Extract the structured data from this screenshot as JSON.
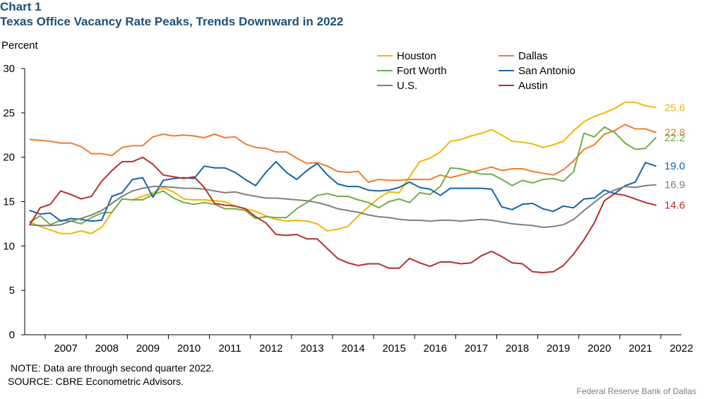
{
  "header": {
    "chart_label": "Chart 1",
    "title": "Texas Office Vacancy Rate Peaks, Trends Downward in 2022"
  },
  "footer": {
    "note": "NOTE:  Data are through second quarter 2022.",
    "source": "SOURCE: CBRE Econometric Advisors.",
    "credit": "Federal  Reserve  Bank  of  Dallas"
  },
  "chart_data": {
    "type": "line",
    "title": "Texas Office Vacancy Rate Peaks, Trends Downward in 2022",
    "ylabel": "Percent",
    "xlabel": "",
    "ylim": [
      0,
      30
    ],
    "yticks": [
      0,
      5,
      10,
      15,
      20,
      25,
      30
    ],
    "x_start": 2006.5,
    "x_end": 2022.5,
    "xtick_labels": [
      "2007",
      "2008",
      "2009",
      "2010",
      "2011",
      "2012",
      "2013",
      "2014",
      "2015",
      "2016",
      "2017",
      "2018",
      "2019",
      "2020",
      "2021",
      "2022"
    ],
    "legend_placement": "top-center",
    "grid": false,
    "quarters_start": "2006Q3",
    "series": [
      {
        "name": "Houston",
        "color": "#f2b705",
        "values": [
          12.7,
          12.2,
          11.8,
          11.4,
          11.4,
          11.7,
          11.4,
          12.1,
          13.8,
          15.3,
          15.2,
          15.6,
          16.0,
          16.6,
          16.1,
          15.3,
          15.2,
          15.2,
          15.1,
          15.0,
          14.5,
          14.2,
          13.9,
          13.4,
          13.0,
          12.8,
          12.9,
          12.8,
          12.5,
          11.7,
          11.9,
          12.2,
          13.4,
          14.4,
          15.4,
          16.1,
          16.0,
          17.8,
          19.5,
          19.9,
          20.6,
          21.8,
          22.0,
          22.4,
          22.7,
          23.1,
          22.5,
          21.8,
          21.7,
          21.5,
          21.1,
          21.4,
          21.8,
          23.0,
          24.0,
          24.6,
          25.0,
          25.5,
          26.2,
          26.2,
          25.8,
          25.6
        ]
      },
      {
        "name": "Dallas",
        "color": "#ed7d31",
        "values": [
          22.0,
          21.9,
          21.8,
          21.6,
          21.6,
          21.2,
          20.4,
          20.4,
          20.2,
          21.1,
          21.3,
          21.3,
          22.3,
          22.6,
          22.4,
          22.5,
          22.4,
          22.2,
          22.6,
          22.2,
          22.3,
          21.5,
          21.1,
          21.0,
          20.6,
          20.6,
          19.9,
          19.3,
          19.4,
          19.0,
          18.4,
          18.3,
          18.4,
          17.2,
          17.5,
          17.4,
          17.4,
          17.5,
          17.5,
          17.5,
          18.0,
          17.7,
          18.0,
          18.3,
          18.6,
          18.9,
          18.5,
          18.7,
          18.7,
          18.4,
          18.2,
          18.0,
          18.6,
          19.6,
          20.9,
          21.4,
          22.6,
          23.0,
          23.7,
          23.2,
          23.2,
          22.8
        ]
      },
      {
        "name": "Fort Worth",
        "color": "#70ad47",
        "values": [
          12.7,
          13.4,
          12.4,
          12.9,
          12.8,
          12.5,
          13.2,
          13.7,
          13.8,
          15.3,
          15.2,
          15.2,
          15.8,
          16.2,
          15.4,
          14.9,
          14.7,
          14.9,
          14.7,
          14.2,
          14.2,
          14.0,
          13.1,
          13.3,
          13.2,
          13.2,
          14.2,
          14.9,
          15.7,
          15.9,
          15.6,
          15.6,
          15.2,
          14.9,
          14.3,
          15.0,
          15.3,
          14.9,
          16.0,
          15.8,
          16.7,
          18.8,
          18.7,
          18.4,
          18.1,
          18.1,
          17.5,
          16.8,
          17.4,
          17.1,
          17.5,
          17.6,
          17.3,
          18.4,
          22.7,
          22.3,
          23.4,
          22.8,
          21.6,
          20.9,
          21.0,
          22.2
        ]
      },
      {
        "name": "San Antonio",
        "color": "#1565a8",
        "values": [
          14.0,
          13.6,
          13.7,
          12.8,
          13.1,
          13.0,
          12.8,
          12.9,
          15.6,
          16.0,
          17.5,
          17.7,
          15.5,
          17.4,
          17.6,
          17.7,
          17.6,
          19.0,
          18.8,
          18.8,
          18.3,
          17.5,
          16.8,
          18.3,
          19.5,
          18.3,
          17.5,
          18.5,
          19.3,
          18.0,
          17.0,
          16.7,
          16.7,
          16.3,
          16.2,
          16.3,
          16.6,
          17.2,
          16.6,
          16.4,
          15.7,
          16.5,
          16.5,
          16.5,
          16.5,
          16.4,
          14.4,
          14.1,
          14.7,
          14.8,
          14.2,
          13.9,
          14.5,
          14.3,
          15.3,
          15.4,
          16.3,
          15.9,
          16.8,
          17.2,
          19.4,
          19.0
        ]
      },
      {
        "name": "U.S.",
        "color": "#7f7f7f",
        "values": [
          12.4,
          12.3,
          12.3,
          12.4,
          12.8,
          13.1,
          13.5,
          14.0,
          14.8,
          15.6,
          16.2,
          16.5,
          16.7,
          16.7,
          16.6,
          16.5,
          16.5,
          16.4,
          16.2,
          16.0,
          16.1,
          15.8,
          15.6,
          15.4,
          15.4,
          15.3,
          15.2,
          15.1,
          14.9,
          14.6,
          14.2,
          14.0,
          13.8,
          13.5,
          13.3,
          13.2,
          13.0,
          12.9,
          12.9,
          12.8,
          12.9,
          12.9,
          12.8,
          12.9,
          13.0,
          12.9,
          12.7,
          12.5,
          12.4,
          12.3,
          12.1,
          12.2,
          12.4,
          13.0,
          14.0,
          14.9,
          15.8,
          16.3,
          16.7,
          16.6,
          16.8,
          16.9
        ]
      },
      {
        "name": "Austin",
        "color": "#b5302e",
        "values": [
          12.4,
          14.3,
          14.7,
          16.2,
          15.8,
          15.3,
          15.6,
          17.3,
          18.5,
          19.5,
          19.5,
          20.0,
          19.2,
          18.0,
          17.8,
          17.6,
          17.8,
          16.6,
          14.8,
          14.6,
          14.5,
          14.2,
          13.3,
          12.6,
          11.3,
          11.2,
          11.3,
          10.8,
          10.8,
          9.7,
          8.6,
          8.1,
          7.8,
          8.0,
          8.0,
          7.5,
          7.5,
          8.6,
          8.1,
          7.7,
          8.2,
          8.2,
          8.0,
          8.1,
          8.9,
          9.4,
          8.8,
          8.1,
          8.0,
          7.1,
          7.0,
          7.1,
          7.8,
          9.1,
          10.7,
          12.6,
          15.1,
          15.9,
          15.7,
          15.3,
          14.9,
          14.6
        ]
      }
    ],
    "end_labels": [
      {
        "text": "25.6",
        "series": "Houston",
        "color": "#f2b705"
      },
      {
        "text": "22.8",
        "series": "Dallas",
        "color": "#ed7d31"
      },
      {
        "text": "22.2",
        "series": "Fort Worth",
        "color": "#70ad47"
      },
      {
        "text": "19.0",
        "series": "San Antonio",
        "color": "#1565a8"
      },
      {
        "text": "16.9",
        "series": "U.S.",
        "color": "#7f7f7f"
      },
      {
        "text": "14.6",
        "series": "Austin",
        "color": "#b5302e"
      }
    ]
  }
}
